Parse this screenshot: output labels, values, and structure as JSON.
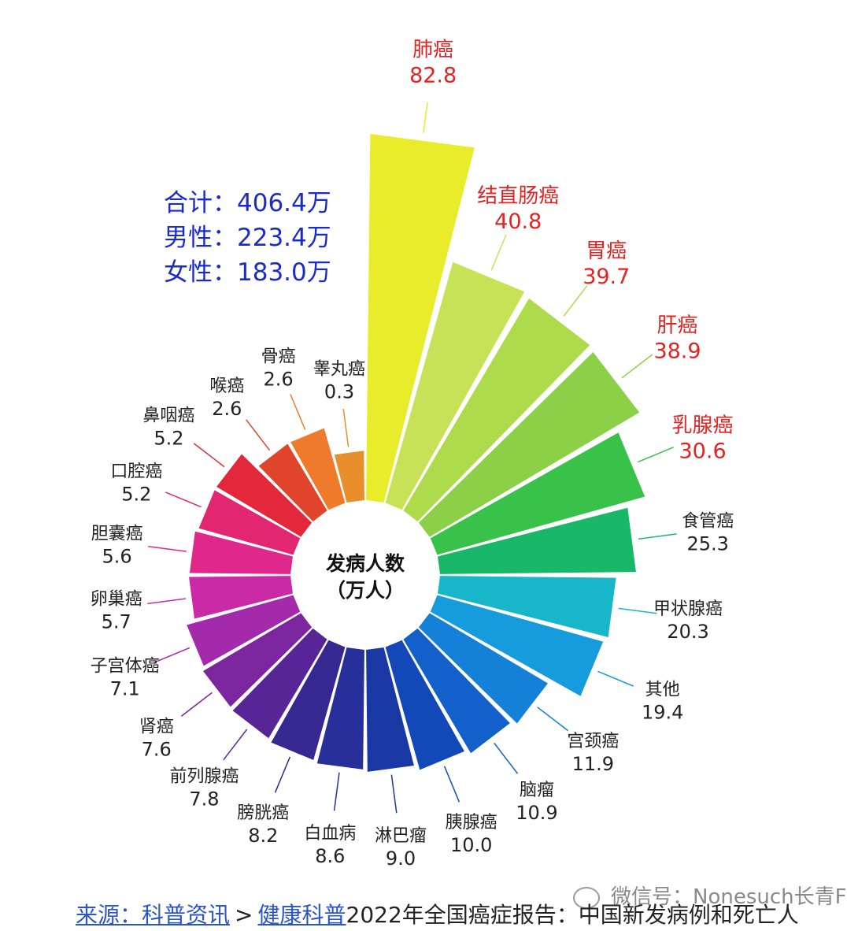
{
  "summary": {
    "total": "合计：406.4万",
    "male": "男性：223.4万",
    "female": "女性：183.0万"
  },
  "center_label": {
    "line1": "发病人数",
    "line2": "（万人）"
  },
  "chart_data": {
    "type": "bar",
    "layout": "radial",
    "categories": [
      "肺癌",
      "结直肠癌",
      "胃癌",
      "肝癌",
      "乳腺癌",
      "食管癌",
      "甲状腺癌",
      "其他",
      "宫颈癌",
      "脑瘤",
      "胰腺癌",
      "淋巴瘤",
      "白血病",
      "膀胱癌",
      "前列腺癌",
      "肾癌",
      "子宫体癌",
      "卵巢癌",
      "胆囊癌",
      "口腔癌",
      "鼻咽癌",
      "喉癌",
      "骨癌",
      "睾丸癌"
    ],
    "values": [
      82.8,
      40.8,
      39.7,
      38.9,
      30.6,
      25.3,
      20.3,
      19.4,
      11.9,
      10.9,
      10.0,
      9.0,
      8.6,
      8.2,
      7.8,
      7.6,
      7.1,
      5.7,
      5.6,
      5.2,
      5.2,
      2.6,
      2.6,
      0.3
    ],
    "value_labels": [
      "82.8",
      "40.8",
      "39.7",
      "38.9",
      "30.6",
      "25.3",
      "20.3",
      "19.4",
      "11.9",
      "10.9",
      "10.0",
      "9.0",
      "8.6",
      "8.2",
      "7.8",
      "7.6",
      "7.1",
      "5.7",
      "5.6",
      "5.2",
      "5.2",
      "2.6",
      "2.6",
      "0.3"
    ],
    "highlighted_label_color": "#e52222",
    "label_color": "#222222",
    "colors": [
      "#e8ec2a",
      "#cde35a",
      "#b3dc4f",
      "#91d14a",
      "#5ec648",
      "#16b85a",
      "#17b889",
      "#17b2d6",
      "#1898dc",
      "#1677d6",
      "#1457c7",
      "#1842ad",
      "#24339c",
      "#302591",
      "#4c2398",
      "#6f249d",
      "#962aa9",
      "#c42aa8",
      "#df2790",
      "#e2277a",
      "#e2245a",
      "#e03630",
      "#ee5d2b",
      "#f4932f",
      "#e28a2e"
    ],
    "bar_colors": [
      "#e8ec2a",
      "#c7e256",
      "#aedb4c",
      "#8cd048",
      "#38c24a",
      "#18b868",
      "#17b6c8",
      "#169bdd",
      "#1580d8",
      "#1460cb",
      "#1348b8",
      "#1a38a3",
      "#27309a",
      "#372891",
      "#572596",
      "#7b259e",
      "#a22aab",
      "#cb2aa6",
      "#df278c",
      "#e22672",
      "#e2283a",
      "#e0452c",
      "#ef7a2c",
      "#e88f2c"
    ],
    "value_axis_range": [
      0,
      82.8
    ]
  },
  "footer": {
    "source_label": "来源：科普资讯",
    "separator": ">",
    "health_link": "健康科普",
    "report_title": "2022年全国癌症报告：中国新发病例和死亡人"
  },
  "watermark": {
    "text": "微信号：Nonesuch长青FS"
  }
}
